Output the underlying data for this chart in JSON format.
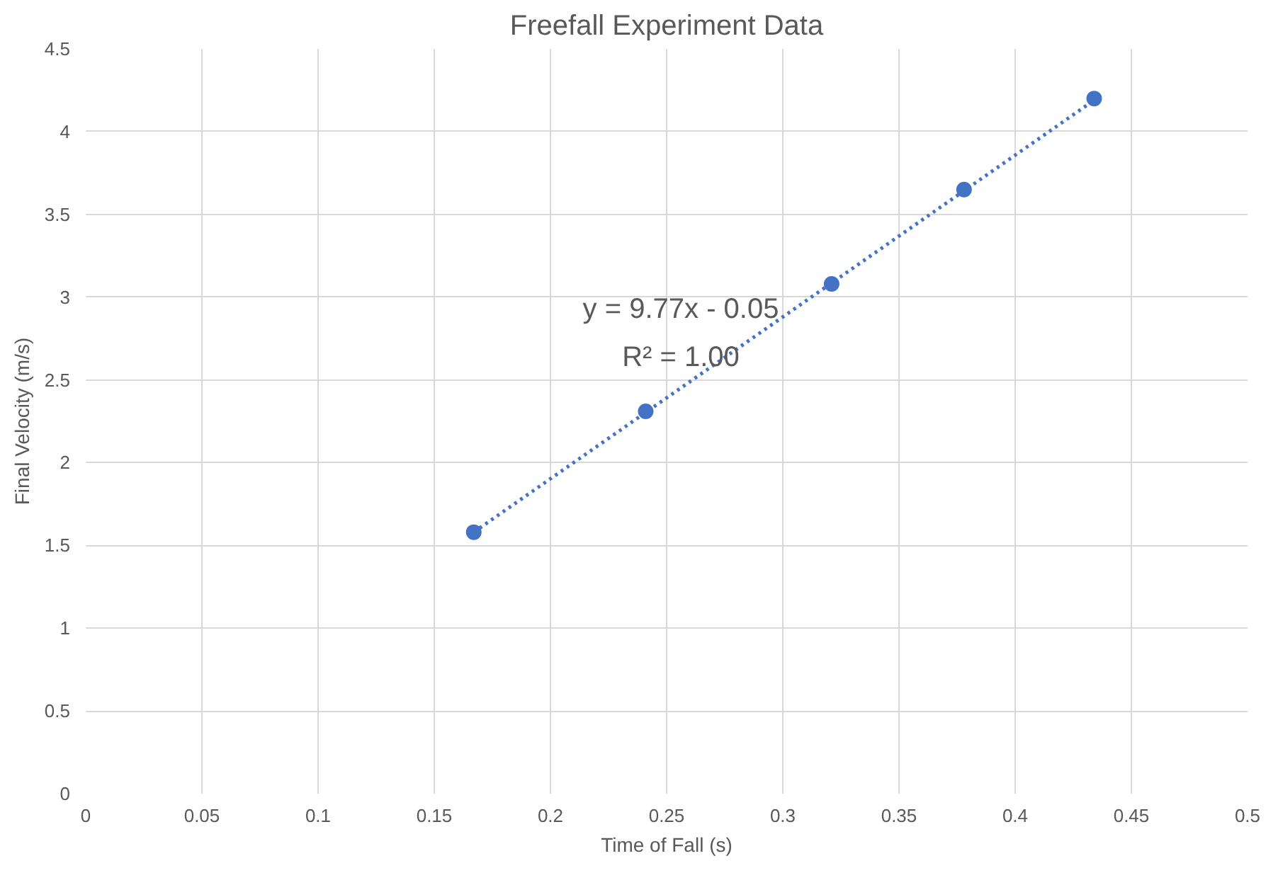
{
  "chart_data": {
    "type": "scatter",
    "title": "Freefall Experiment Data",
    "xlabel": "Time of Fall (s)",
    "ylabel": "Final Velocity (m/s)",
    "x": [
      0.167,
      0.241,
      0.321,
      0.378,
      0.434
    ],
    "series": [
      {
        "color": "#4472c4",
        "values": [
          1.58,
          2.31,
          3.08,
          3.65,
          4.2
        ],
        "marker": "circle"
      },
      {
        "type": "line",
        "color": "#4472c4",
        "x": [
          0.167,
          0.434
        ],
        "values": [
          1.58,
          4.19
        ],
        "marker": "none",
        "line_style": "dotted"
      }
    ],
    "xlim": [
      0,
      0.5
    ],
    "xticks": [
      0,
      0.05,
      0.1,
      0.15,
      0.2,
      0.25,
      0.3,
      0.35,
      0.4,
      0.45,
      0.5
    ],
    "ylim": [
      0,
      4.5
    ],
    "yticks": [
      0,
      0.5,
      1,
      1.5,
      2,
      2.5,
      3,
      3.5,
      4,
      4.5
    ],
    "grid": true,
    "annotations": [
      "y = 9.77x - 0.05",
      "R² = 1.00"
    ]
  }
}
